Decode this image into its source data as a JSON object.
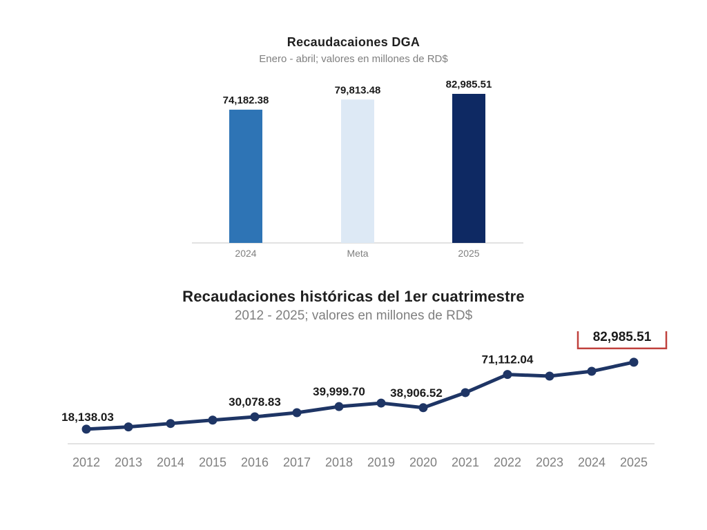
{
  "page": {
    "background": "#ffffff"
  },
  "chart_data": [
    {
      "type": "bar",
      "title": "Recaudacaiones DGA",
      "subtitle": "Enero - abril; valores en millones de RD$",
      "categories": [
        "2024",
        "Meta",
        "2025"
      ],
      "values": [
        74182.38,
        79813.48,
        82985.51
      ],
      "value_labels": [
        "74,182.38",
        "79,813.48",
        "82,985.51"
      ],
      "bar_colors": [
        "#2E74B5",
        "#DDE9F5",
        "#0E2963"
      ],
      "xlabel": "",
      "ylabel": "",
      "ylim": [
        0,
        93000
      ],
      "grid": false,
      "legend": false,
      "axis_line_color": "#D9D9D9",
      "tick_label_color": "#7f7f7f",
      "data_label_color": "#1a1a1a"
    },
    {
      "type": "line",
      "title": "Recaudaciones históricas del 1er cuatrimestre",
      "subtitle": "2012 - 2025; valores en millones de RD$",
      "x": [
        "2012",
        "2013",
        "2014",
        "2015",
        "2016",
        "2017",
        "2018",
        "2019",
        "2020",
        "2021",
        "2022",
        "2023",
        "2024",
        "2025"
      ],
      "values": [
        18138.03,
        20300,
        23600,
        26900,
        30078.83,
        34100,
        39999.7,
        43400,
        38906.52,
        53500,
        71112.04,
        69500,
        74182.38,
        82985.51
      ],
      "point_labels": [
        "18,138.03",
        "",
        "",
        "",
        "30,078.83",
        "",
        "39,999.70",
        "",
        "38,906.52",
        "",
        "71,112.04",
        "",
        "",
        "82,985.51"
      ],
      "xlabel": "",
      "ylabel": "",
      "ylim": [
        0,
        93000
      ],
      "grid": false,
      "legend": false,
      "line_color": "#1E3565",
      "marker_color": "#1E3565",
      "axis_line_color": "#D9D9D9",
      "tick_label_color": "#7f7f7f",
      "data_label_color": "#1a1a1a",
      "highlight": {
        "index": 13,
        "label": "82,985.51",
        "box_border_color": "#C0413D"
      }
    }
  ]
}
